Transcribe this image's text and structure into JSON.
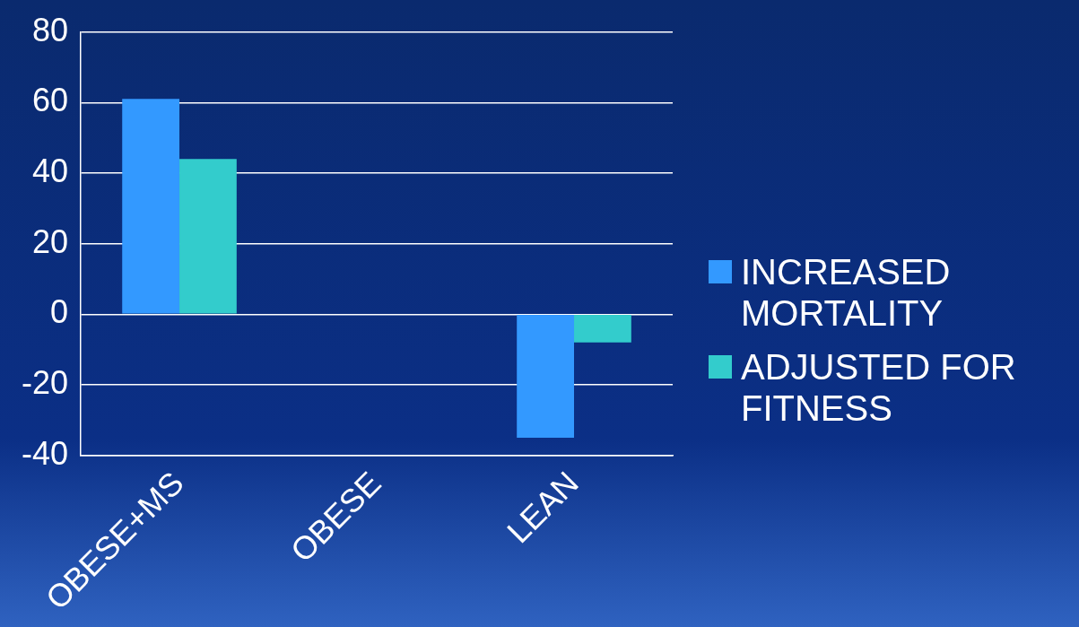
{
  "chart_data": {
    "type": "bar",
    "categories": [
      "OBESE+MS",
      "OBESE",
      "LEAN"
    ],
    "series": [
      {
        "name": "INCREASED MORTALITY",
        "color": "#3399ff",
        "values": [
          61,
          0,
          -35
        ]
      },
      {
        "name": "ADJUSTED FOR FITNESS",
        "color": "#33cccc",
        "values": [
          44,
          0,
          -8
        ]
      }
    ],
    "ylim": [
      -40,
      80
    ],
    "yticks": [
      -40,
      -20,
      0,
      20,
      40,
      60,
      80
    ],
    "grid": "y",
    "legend": "right"
  }
}
